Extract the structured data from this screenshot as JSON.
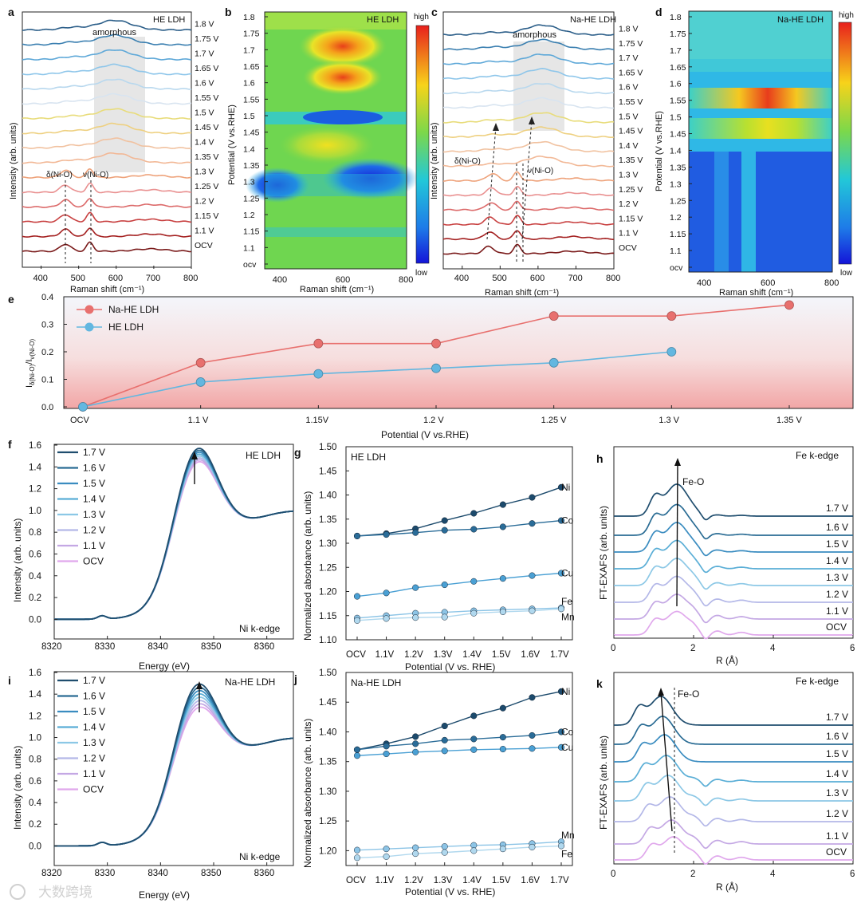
{
  "watermark": "大数跨境",
  "chart_data": [
    {
      "panel": "a",
      "type": "line",
      "title": "HE LDH",
      "xlabel": "Raman shift (cm⁻¹)",
      "ylabel": "Intensity (arb. units)",
      "xlim": [
        350,
        800
      ],
      "xticks": [
        400,
        500,
        600,
        700,
        800
      ],
      "region_label": "amorphous",
      "region": [
        540,
        690
      ],
      "peak_labels": [
        "δ(Ni-O)",
        "ν(Ni-O)"
      ],
      "peak_positions": [
        465,
        530
      ],
      "series_names": [
        "OCV",
        "1.1 V",
        "1.15 V",
        "1.2 V",
        "1.25 V",
        "1.3 V",
        "1.35 V",
        "1.4 V",
        "1.45 V",
        "1.5 V",
        "1.55 V",
        "1.6 V",
        "1.65 V",
        "1.7 V",
        "1.75 V",
        "1.8 V"
      ]
    },
    {
      "panel": "b",
      "type": "heatmap",
      "title": "HE LDH",
      "xlabel": "Raman shift (cm⁻¹)",
      "ylabel": "Potential (V vs.RHE)",
      "xlim": [
        350,
        800
      ],
      "xticks": [
        400,
        600,
        800
      ],
      "ylim": [
        1.05,
        1.8
      ],
      "yticks": [
        "ocv",
        "1.1",
        "1.15",
        "1.2",
        "1.25",
        "1.3",
        "1.35",
        "1.4",
        "1.45",
        "1.5",
        "1.55",
        "1.6",
        "1.65",
        "1.7",
        "1.75",
        "1.8"
      ],
      "colorbar": [
        "high",
        "low"
      ]
    },
    {
      "panel": "c",
      "type": "line",
      "title": "Na-HE LDH",
      "xlabel": "Raman shift (cm⁻¹)",
      "ylabel": "Intensity (arb. units)",
      "xlim": [
        350,
        800
      ],
      "xticks": [
        400,
        500,
        600,
        700,
        800
      ],
      "region_label": "amorphous",
      "region": [
        555,
        665
      ],
      "peak_labels": [
        "δ(Ni-O)",
        "ν(Ni-O)"
      ],
      "peak_positions": [
        470,
        545
      ],
      "series_names": [
        "OCV",
        "1.1 V",
        "1.15 V",
        "1.2 V",
        "1.25 V",
        "1.3 V",
        "1.35 V",
        "1.4 V",
        "1.45 V",
        "1.5 V",
        "1.55 V",
        "1.6 V",
        "1.65 V",
        "1.7 V",
        "1.75 V",
        "1.8 V"
      ]
    },
    {
      "panel": "d",
      "type": "heatmap",
      "title": "Na-HE LDH",
      "xlabel": "Raman shift (cm⁻¹)",
      "ylabel": "Potential (V vs.RHE)",
      "xlim": [
        350,
        800
      ],
      "xticks": [
        400,
        600,
        800
      ],
      "ylim": [
        1.05,
        1.8
      ],
      "yticks": [
        "ocv",
        "1.1",
        "1.15",
        "1.2",
        "1.25",
        "1.3",
        "1.35",
        "1.4",
        "1.45",
        "1.5",
        "1.55",
        "1.6",
        "1.65",
        "1.7",
        "1.75",
        "1.8"
      ],
      "colorbar": [
        "high",
        "low"
      ]
    },
    {
      "panel": "e",
      "type": "line",
      "xlabel": "Potential (V vs.RHE)",
      "ylabel": "I δ(Ni-O) / I ν(Ni-O)",
      "categories": [
        "OCV",
        "1.1 V",
        "1.15V",
        "1.2 V",
        "1.25 V",
        "1.3 V",
        "1.35 V"
      ],
      "ylim": [
        0,
        0.4
      ],
      "yticks": [
        "0.0",
        "0.1",
        "0.2",
        "0.3",
        "0.4"
      ],
      "series": [
        {
          "name": "Na-HE LDH",
          "color": "#e8706e",
          "values": [
            0.0,
            0.16,
            0.23,
            0.23,
            0.33,
            0.33,
            0.37
          ]
        },
        {
          "name": "HE LDH",
          "color": "#63b7e0",
          "values": [
            0.0,
            0.09,
            0.12,
            0.14,
            0.16,
            0.2,
            null
          ]
        }
      ]
    },
    {
      "panel": "f",
      "type": "line",
      "title": "HE LDH",
      "note": "Ni k-edge",
      "xlabel": "Energy (eV)",
      "ylabel": "Intensity (arb. units)",
      "xlim": [
        8320,
        8365
      ],
      "xticks": [
        "8320",
        "8330",
        "8340",
        "8350",
        "8360"
      ],
      "ylim": [
        -0.1,
        1.6
      ],
      "yticks": [
        "0.0",
        "0.2",
        "0.4",
        "0.6",
        "0.8",
        "1.0",
        "1.2",
        "1.4",
        "1.6"
      ],
      "series_names": [
        "1.7 V",
        "1.6 V",
        "1.5 V",
        "1.4 V",
        "1.3 V",
        "1.2 V",
        "1.1 V",
        "OCV"
      ],
      "peak_max": 1.42,
      "peak_min": 1.34
    },
    {
      "panel": "g",
      "type": "line",
      "title": "HE LDH",
      "xlabel": "Potential (V vs. RHE)",
      "ylabel": "Normalized absorbance (arb. units)",
      "categories": [
        "OCV",
        "1.1V",
        "1.2V",
        "1.3V",
        "1.4V",
        "1.5V",
        "1.6V",
        "1.7V"
      ],
      "ylim": [
        1.1,
        1.5
      ],
      "yticks": [
        "1.10",
        "1.15",
        "1.20",
        "1.25",
        "1.30",
        "1.35",
        "1.40",
        "1.45",
        "1.50"
      ],
      "series": [
        {
          "name": "Ni",
          "values": [
            1.315,
            1.32,
            1.33,
            1.347,
            1.362,
            1.38,
            1.395,
            1.416
          ]
        },
        {
          "name": "Co",
          "values": [
            1.315,
            1.318,
            1.322,
            1.327,
            1.329,
            1.334,
            1.341,
            1.347
          ]
        },
        {
          "name": "Cu",
          "values": [
            1.19,
            1.197,
            1.208,
            1.214,
            1.221,
            1.227,
            1.233,
            1.238
          ]
        },
        {
          "name": "Fe",
          "values": [
            1.145,
            1.15,
            1.155,
            1.157,
            1.16,
            1.162,
            1.164,
            1.166
          ]
        },
        {
          "name": "Mn",
          "values": [
            1.14,
            1.144,
            1.146,
            1.147,
            1.155,
            1.158,
            1.16,
            1.164
          ]
        }
      ]
    },
    {
      "panel": "h",
      "type": "line",
      "title": "Fe k-edge",
      "annotation": "Fe-O",
      "xlabel": "R (Å)",
      "ylabel": "FT-EXAFS (arb. units)",
      "xlim": [
        0,
        6
      ],
      "xticks": [
        "0",
        "2",
        "4",
        "6"
      ],
      "series_names": [
        "1.7 V",
        "1.6 V",
        "1.5 V",
        "1.4 V",
        "1.3 V",
        "1.2 V",
        "1.1 V",
        "OCV"
      ]
    },
    {
      "panel": "i",
      "type": "line",
      "title": "Na-HE LDH",
      "note": "Ni k-edge",
      "xlabel": "Energy (eV)",
      "ylabel": "Intensity (arb. units)",
      "xlim": [
        8320,
        8365
      ],
      "xticks": [
        "8320",
        "8330",
        "8340",
        "8350",
        "8360"
      ],
      "ylim": [
        -0.1,
        1.6
      ],
      "yticks": [
        "0.0",
        "0.2",
        "0.4",
        "0.6",
        "0.8",
        "1.0",
        "1.2",
        "1.4",
        "1.6"
      ],
      "series_names": [
        "1.7 V",
        "1.6 V",
        "1.5 V",
        "1.4 V",
        "1.3 V",
        "1.2 V",
        "1.1 V",
        "OCV"
      ],
      "peak_max": 1.37,
      "peak_min": 1.23
    },
    {
      "panel": "j",
      "type": "line",
      "title": "Na-HE LDH",
      "xlabel": "Potential (V vs. RHE)",
      "ylabel": "Normalized absorbance (arb. units)",
      "categories": [
        "OCV",
        "1.1V",
        "1.2V",
        "1.3V",
        "1.4V",
        "1.5V",
        "1.6V",
        "1.7V"
      ],
      "ylim": [
        1.175,
        1.5
      ],
      "yticks": [
        "1.20",
        "1.25",
        "1.30",
        "1.35",
        "1.40",
        "1.45",
        "1.50"
      ],
      "series": [
        {
          "name": "Ni",
          "values": [
            1.37,
            1.38,
            1.392,
            1.41,
            1.427,
            1.44,
            1.458,
            1.468
          ]
        },
        {
          "name": "Co",
          "values": [
            1.37,
            1.376,
            1.38,
            1.386,
            1.388,
            1.391,
            1.394,
            1.4
          ]
        },
        {
          "name": "Cu",
          "values": [
            1.36,
            1.363,
            1.366,
            1.368,
            1.37,
            1.371,
            1.372,
            1.374
          ]
        },
        {
          "name": "Mn",
          "values": [
            1.201,
            1.203,
            1.205,
            1.207,
            1.209,
            1.21,
            1.212,
            1.215
          ]
        },
        {
          "name": "Fe",
          "values": [
            1.188,
            1.19,
            1.195,
            1.197,
            1.2,
            1.203,
            1.206,
            1.208
          ]
        }
      ]
    },
    {
      "panel": "k",
      "type": "line",
      "title": "Fe k-edge",
      "annotation": "Fe-O",
      "xlabel": "R (Å)",
      "ylabel": "FT-EXAFS (arb. units)",
      "xlim": [
        0,
        6
      ],
      "xticks": [
        "0",
        "2",
        "4",
        "6"
      ],
      "series_names": [
        "1.7 V",
        "1.6 V",
        "1.5 V",
        "1.4 V",
        "1.3 V",
        "1.2 V",
        "1.1 V",
        "OCV"
      ]
    }
  ]
}
